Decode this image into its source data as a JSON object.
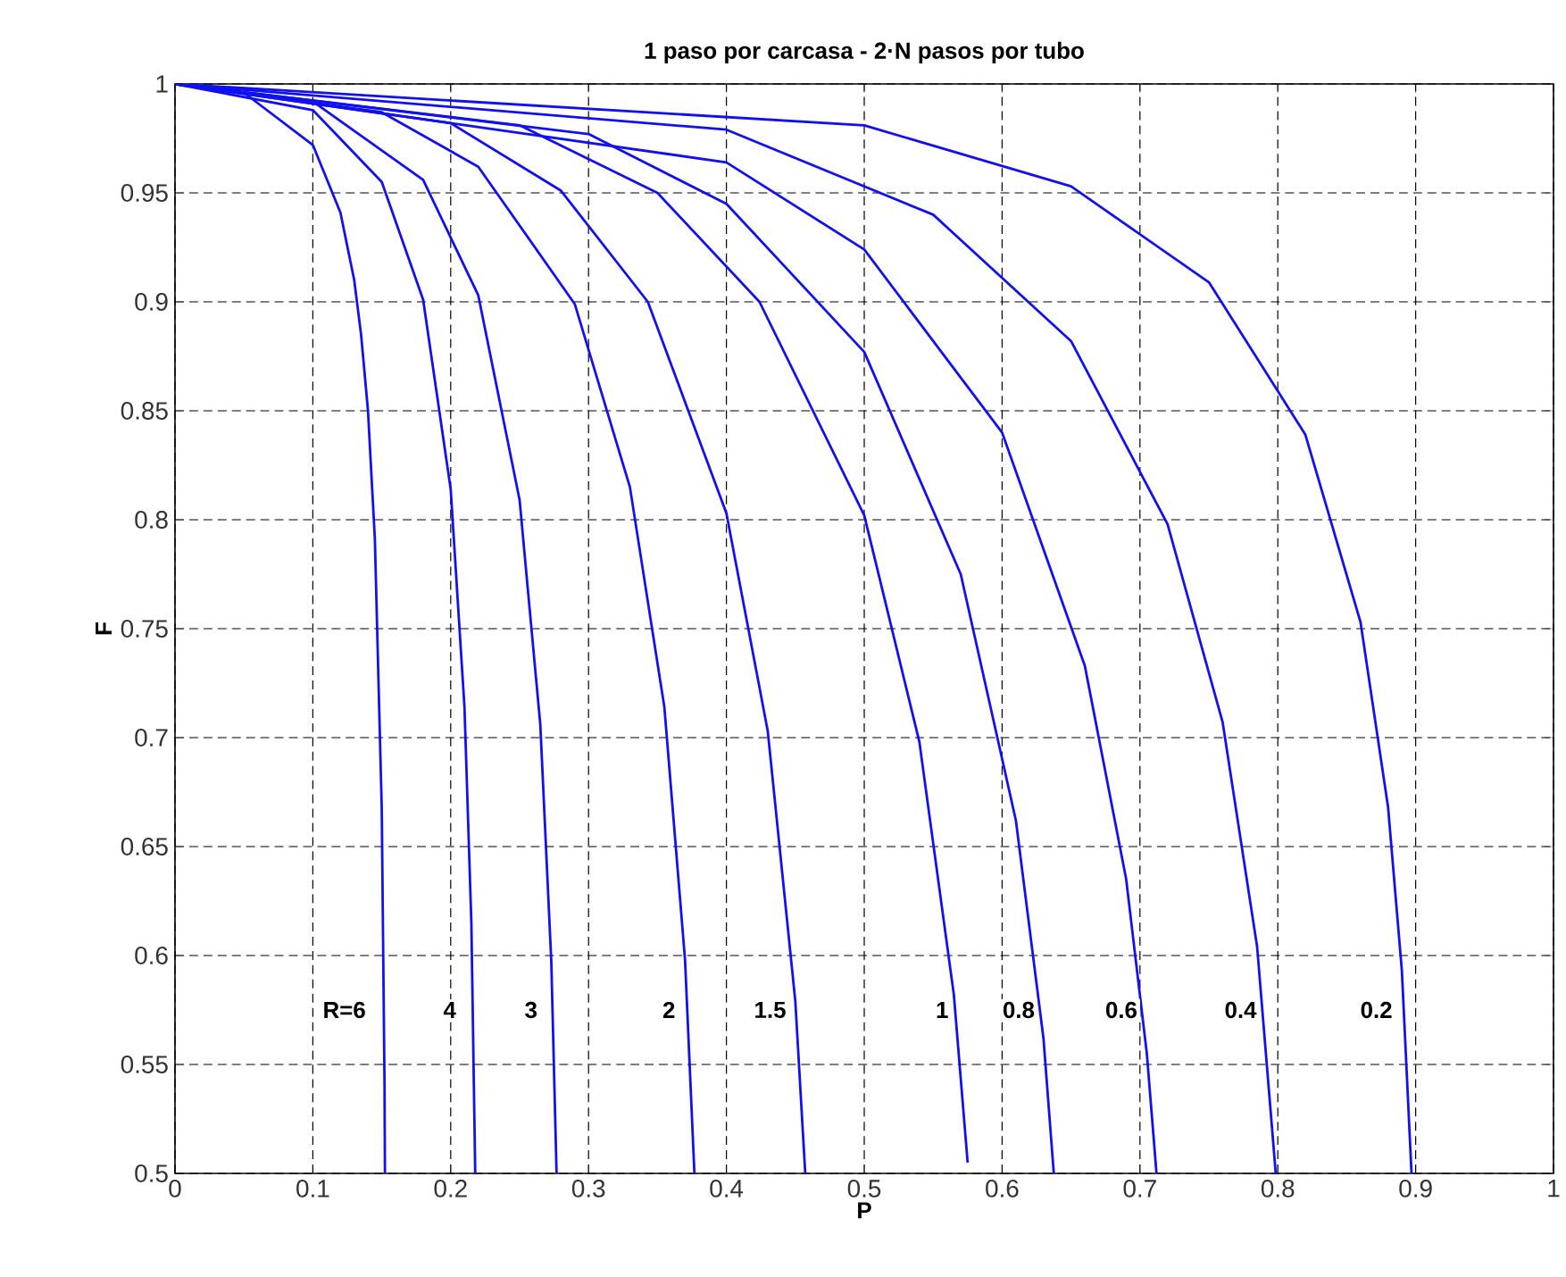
{
  "chart_data": {
    "type": "line",
    "title": "1 paso por carcasa - 2·N pasos por tubo",
    "xlabel": "P",
    "ylabel": "F",
    "xlim": [
      0,
      1
    ],
    "ylim": [
      0.5,
      1
    ],
    "xticks": [
      0,
      0.1,
      0.2,
      0.3,
      0.4,
      0.5,
      0.6,
      0.7,
      0.8,
      0.9,
      1
    ],
    "yticks": [
      0.5,
      0.55,
      0.6,
      0.65,
      0.7,
      0.75,
      0.8,
      0.85,
      0.9,
      0.95,
      1
    ],
    "grid": true,
    "series": [
      {
        "name": "R=6",
        "color": "#1010f0",
        "x": [
          0,
          0.05,
          0.1,
          0.12,
          0.13,
          0.135,
          0.14,
          0.145,
          0.15,
          0.152,
          0.1523
        ],
        "values": [
          1,
          0.996,
          0.972,
          0.941,
          0.91,
          0.885,
          0.85,
          0.791,
          0.667,
          0.541,
          0.5
        ]
      },
      {
        "name": "4",
        "color": "#1010f0",
        "x": [
          0,
          0.1,
          0.15,
          0.18,
          0.2,
          0.21,
          0.215,
          0.2178
        ],
        "values": [
          1,
          0.988,
          0.955,
          0.901,
          0.814,
          0.714,
          0.615,
          0.5
        ]
      },
      {
        "name": "3",
        "color": "#1010f0",
        "x": [
          0,
          0.1,
          0.18,
          0.22,
          0.25,
          0.265,
          0.273,
          0.2768
        ],
        "values": [
          1,
          0.992,
          0.956,
          0.903,
          0.809,
          0.706,
          0.597,
          0.5
        ]
      },
      {
        "name": "2",
        "color": "#1010f0",
        "x": [
          0,
          0.15,
          0.22,
          0.29,
          0.33,
          0.355,
          0.37,
          0.3768
        ],
        "values": [
          1,
          0.987,
          0.962,
          0.899,
          0.815,
          0.714,
          0.598,
          0.5
        ]
      },
      {
        "name": "1.5",
        "color": "#1010f0",
        "x": [
          0,
          0.2,
          0.28,
          0.343,
          0.4,
          0.43,
          0.45,
          0.4572
        ],
        "values": [
          1,
          0.982,
          0.951,
          0.9,
          0.803,
          0.703,
          0.579,
          0.5
        ]
      },
      {
        "name": "1",
        "color": "#1010f0",
        "x": [
          0,
          0.25,
          0.35,
          0.424,
          0.5,
          0.54,
          0.565,
          0.575
        ],
        "values": [
          1,
          0.981,
          0.95,
          0.9,
          0.802,
          0.698,
          0.582,
          0.505
        ]
      },
      {
        "name": "0.8",
        "color": "#1010f0",
        "x": [
          0,
          0.3,
          0.4,
          0.5,
          0.57,
          0.61,
          0.63,
          0.6375
        ],
        "values": [
          1,
          0.977,
          0.945,
          0.877,
          0.775,
          0.662,
          0.562,
          0.5
        ]
      },
      {
        "name": "0.6",
        "color": "#1010f0",
        "x": [
          0,
          0.4,
          0.5,
          0.6,
          0.66,
          0.69,
          0.705,
          0.712
        ],
        "values": [
          1,
          0.964,
          0.924,
          0.84,
          0.733,
          0.635,
          0.555,
          0.5
        ]
      },
      {
        "name": "0.4",
        "color": "#1010f0",
        "x": [
          0,
          0.4,
          0.55,
          0.65,
          0.72,
          0.76,
          0.785,
          0.7985
        ],
        "values": [
          1,
          0.979,
          0.94,
          0.882,
          0.798,
          0.707,
          0.604,
          0.5
        ]
      },
      {
        "name": "0.2",
        "color": "#1010f0",
        "x": [
          0,
          0.5,
          0.65,
          0.75,
          0.82,
          0.86,
          0.88,
          0.89,
          0.897
        ],
        "values": [
          1,
          0.981,
          0.953,
          0.909,
          0.839,
          0.753,
          0.668,
          0.593,
          0.5
        ]
      }
    ]
  }
}
